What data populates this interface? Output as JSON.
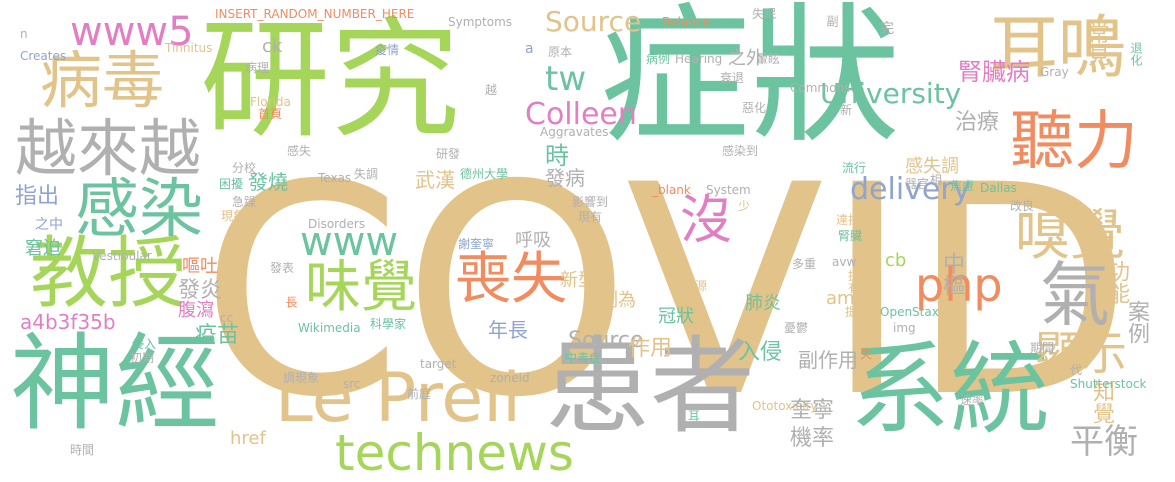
{
  "colors": {
    "tan": "#e2c38a",
    "green": "#a5d65a",
    "teal": "#6cc3a0",
    "gray": "#b0b0b0",
    "orange": "#f08c5f",
    "pink": "#e27fc4",
    "blue": "#8fa4cf"
  },
  "words": [
    {
      "text": "COVID",
      "c": "tan"
    },
    {
      "text": "症狀",
      "c": "teal"
    },
    {
      "text": "研究",
      "c": "green"
    },
    {
      "text": "患者",
      "c": "gray"
    },
    {
      "text": "系統",
      "c": "teal"
    },
    {
      "text": "神經",
      "c": "teal"
    },
    {
      "text": "Le Prell",
      "c": "tan"
    },
    {
      "text": "教授",
      "c": "green"
    },
    {
      "text": "耳鳴",
      "c": "tan"
    },
    {
      "text": "病毒",
      "c": "tan"
    },
    {
      "text": "越來越",
      "c": "gray"
    },
    {
      "text": "聽力",
      "c": "orange"
    },
    {
      "text": "感染",
      "c": "teal"
    },
    {
      "text": "氣",
      "c": "gray"
    },
    {
      "text": "technews",
      "c": "green"
    },
    {
      "text": "味覺",
      "c": "green"
    },
    {
      "text": "喪失",
      "c": "orange"
    },
    {
      "text": "嗅覺",
      "c": "tan"
    },
    {
      "text": "www5",
      "c": "pink"
    },
    {
      "text": "沒",
      "c": "pink"
    },
    {
      "text": "www",
      "c": "teal"
    },
    {
      "text": "php",
      "c": "orange"
    },
    {
      "text": "顯示",
      "c": "tan"
    },
    {
      "text": "Source",
      "c": "tan"
    },
    {
      "text": "Colleen",
      "c": "pink"
    },
    {
      "text": "tw",
      "c": "teal"
    },
    {
      "text": "University",
      "c": "teal"
    },
    {
      "text": "delivery",
      "c": "blue"
    },
    {
      "text": "Source",
      "c": "gray"
    },
    {
      "text": "腎臟病",
      "c": "pink"
    },
    {
      "text": "治療",
      "c": "gray"
    },
    {
      "text": "常見",
      "c": "tan"
    },
    {
      "text": "平衡",
      "c": "gray"
    },
    {
      "text": "功能",
      "c": "tan"
    },
    {
      "text": "中樞",
      "c": "gray"
    },
    {
      "text": "指出",
      "c": "blue"
    },
    {
      "text": "發炎",
      "c": "gray"
    },
    {
      "text": "時",
      "c": "teal"
    },
    {
      "text": "年長",
      "c": "blue"
    },
    {
      "text": "作用",
      "c": "tan"
    },
    {
      "text": "入侵",
      "c": "teal"
    },
    {
      "text": "副作用",
      "c": "gray"
    },
    {
      "text": "奎寧",
      "c": "gray"
    },
    {
      "text": "機率",
      "c": "gray"
    },
    {
      "text": "疫苗",
      "c": "teal"
    },
    {
      "text": "知覺",
      "c": "tan"
    },
    {
      "text": "案例",
      "c": "gray"
    },
    {
      "text": "感失調",
      "c": "tan"
    },
    {
      "text": "發燒",
      "c": "teal"
    },
    {
      "text": "發病",
      "c": "gray"
    },
    {
      "text": "武漢",
      "c": "tan"
    },
    {
      "text": "呼吸",
      "c": "gray"
    },
    {
      "text": "嘔吐",
      "c": "orange"
    },
    {
      "text": "腹瀉",
      "c": "pink"
    },
    {
      "text": "a4b3f35b",
      "c": "pink"
    },
    {
      "text": "新型",
      "c": "tan"
    },
    {
      "text": "列為",
      "c": "tan"
    },
    {
      "text": "肺炎",
      "c": "teal"
    },
    {
      "text": "冠狀",
      "c": "teal"
    },
    {
      "text": "amp",
      "c": "tan"
    },
    {
      "text": "cb",
      "c": "green"
    },
    {
      "text": "href",
      "c": "tan"
    },
    {
      "text": "ck",
      "c": "gray"
    },
    {
      "text": "之外",
      "c": "gray"
    },
    {
      "text": "窘迫",
      "c": "teal"
    },
    {
      "text": "之中",
      "c": "blue"
    },
    {
      "text": "INSERT_RANDOM_NUMBER_HERE",
      "c": "orange"
    },
    {
      "text": "Symptoms",
      "c": "gray"
    },
    {
      "text": "Balance",
      "c": "orange"
    },
    {
      "text": "失眠",
      "c": "gray"
    },
    {
      "text": "副",
      "c": "gray"
    },
    {
      "text": "完",
      "c": "gray"
    },
    {
      "text": "Tinnitus",
      "c": "tan"
    },
    {
      "text": "Creates",
      "c": "blue"
    },
    {
      "text": "疫情",
      "c": "blue"
    },
    {
      "text": "原本",
      "c": "gray"
    },
    {
      "text": "病例",
      "c": "teal"
    },
    {
      "text": "Hearing",
      "c": "gray"
    },
    {
      "text": "暈眩",
      "c": "gray"
    },
    {
      "text": "病理",
      "c": "gray"
    },
    {
      "text": "衰退",
      "c": "gray"
    },
    {
      "text": "Commons",
      "c": "gray"
    },
    {
      "text": "退化",
      "c": "teal"
    },
    {
      "text": "Florida",
      "c": "tan"
    },
    {
      "text": "首頁",
      "c": "orange"
    },
    {
      "text": "越",
      "c": "gray"
    },
    {
      "text": "惡化",
      "c": "gray"
    },
    {
      "text": "新",
      "c": "gray"
    },
    {
      "text": "Aggravates",
      "c": "gray"
    },
    {
      "text": "研發",
      "c": "gray"
    },
    {
      "text": "感失",
      "c": "gray"
    },
    {
      "text": "感染到",
      "c": "gray"
    },
    {
      "text": "器官",
      "c": "gray"
    },
    {
      "text": "焦慮",
      "c": "teal"
    },
    {
      "text": "分校",
      "c": "gray"
    },
    {
      "text": "失調",
      "c": "gray"
    },
    {
      "text": "Texas",
      "c": "gray"
    },
    {
      "text": "德州大學",
      "c": "teal"
    },
    {
      "text": "困擾",
      "c": "teal"
    },
    {
      "text": "_blank",
      "c": "orange"
    },
    {
      "text": "System",
      "c": "gray"
    },
    {
      "text": "流行",
      "c": "teal"
    },
    {
      "text": "相",
      "c": "gray"
    },
    {
      "text": "Dallas",
      "c": "teal"
    },
    {
      "text": "急躁",
      "c": "gray"
    },
    {
      "text": "影響到",
      "c": "gray"
    },
    {
      "text": "少",
      "c": "tan"
    },
    {
      "text": "改良",
      "c": "gray"
    },
    {
      "text": "現象",
      "c": "tan"
    },
    {
      "text": "Disorders",
      "c": "gray"
    },
    {
      "text": "現有",
      "c": "gray"
    },
    {
      "text": "達拉斯",
      "c": "tan"
    },
    {
      "text": "謝奎寧",
      "c": "blue"
    },
    {
      "text": "腎臟",
      "c": "teal"
    },
    {
      "text": "Vestibular",
      "c": "gray"
    },
    {
      "text": "avw",
      "c": "gray"
    },
    {
      "text": "多重",
      "c": "gray"
    },
    {
      "text": "發表",
      "c": "gray"
    },
    {
      "text": "提高",
      "c": "tan"
    },
    {
      "text": "來源",
      "c": "tan"
    },
    {
      "text": "有助",
      "c": "tan"
    },
    {
      "text": "提升",
      "c": "tan"
    },
    {
      "text": "OpenStax",
      "c": "teal"
    },
    {
      "text": "Wikimedia",
      "c": "teal"
    },
    {
      "text": "長",
      "c": "orange"
    },
    {
      "text": "cc",
      "c": "gray"
    },
    {
      "text": "科學家",
      "c": "teal"
    },
    {
      "text": "憂鬱",
      "c": "gray"
    },
    {
      "text": "img",
      "c": "gray"
    },
    {
      "text": "侵入",
      "c": "teal"
    },
    {
      "text": "初期",
      "c": "gray"
    },
    {
      "text": "target",
      "c": "gray"
    },
    {
      "text": "中毒症",
      "c": "teal"
    },
    {
      "text": "失",
      "c": "orange"
    },
    {
      "text": "期間",
      "c": "gray"
    },
    {
      "text": "調現象",
      "c": "gray"
    },
    {
      "text": "src",
      "c": "gray"
    },
    {
      "text": "zoneid",
      "c": "gray"
    },
    {
      "text": "代",
      "c": "gray"
    },
    {
      "text": "Shutterstock",
      "c": "teal"
    },
    {
      "text": "前庭",
      "c": "gray"
    },
    {
      "text": "Ototoxicity",
      "c": "tan"
    },
    {
      "text": "耳",
      "c": "teal"
    },
    {
      "text": "速率",
      "c": "gray"
    },
    {
      "text": "時間",
      "c": "gray"
    },
    {
      "text": "n",
      "c": "gray"
    },
    {
      "text": "a",
      "c": "blue"
    },
    {
      "text": "Gray",
      "c": "gray"
    }
  ]
}
